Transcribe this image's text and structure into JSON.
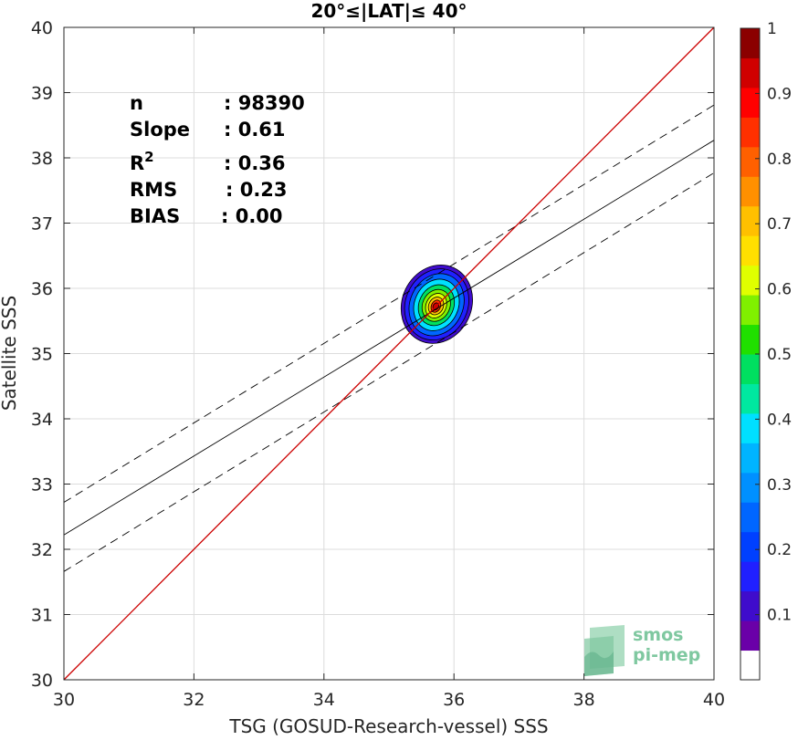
{
  "chart_data": {
    "type": "scatter",
    "title": "20°≤|LAT|≤ 40°",
    "xlabel": "TSG (GOSUD-Research-vessel) SSS",
    "ylabel": "Satellite SSS",
    "xlim": [
      30,
      40
    ],
    "ylim": [
      30,
      40
    ],
    "xticks": [
      "30",
      "32",
      "34",
      "36",
      "38",
      "40"
    ],
    "yticks": [
      "30",
      "31",
      "32",
      "33",
      "34",
      "35",
      "36",
      "37",
      "38",
      "39",
      "40"
    ],
    "grid": true,
    "stats": [
      {
        "label": "n",
        "sep": ": 98390"
      },
      {
        "label": "Slope",
        "sep": ": 0.61"
      },
      {
        "label": "R",
        "sup": "2",
        "sep": ": 0.36"
      },
      {
        "label": "RMS",
        "sep": ": 0.23"
      },
      {
        "label": "BIAS",
        "sep": ": 0.00"
      }
    ],
    "lines": {
      "identity": {
        "x": [
          30,
          40
        ],
        "y": [
          30,
          40
        ],
        "color": "#cc0000"
      },
      "fit": {
        "x": [
          30,
          40
        ],
        "y": [
          32.22,
          38.27
        ],
        "color": "#000000"
      },
      "fit_upper": {
        "x": [
          30,
          40
        ],
        "y": [
          32.72,
          38.81
        ],
        "style": "dashed"
      },
      "fit_lower": {
        "x": [
          30,
          40
        ],
        "y": [
          31.66,
          37.77
        ],
        "style": "dashed"
      }
    },
    "density": {
      "center": [
        35.75,
        35.72
      ],
      "description": "normalized point density contours",
      "levels": [
        0.05,
        0.1,
        0.2,
        0.3,
        0.4,
        0.5,
        0.6,
        0.7,
        0.8,
        0.9,
        0.95
      ]
    },
    "colorbar": {
      "ticks": [
        "0.1",
        "0.2",
        "0.3",
        "0.4",
        "0.5",
        "0.6",
        "0.7",
        "0.8",
        "0.9",
        "1"
      ],
      "tick_values": [
        0.1,
        0.2,
        0.3,
        0.4,
        0.5,
        0.6,
        0.7,
        0.8,
        0.9,
        1.0
      ],
      "range": [
        0,
        1
      ],
      "colors": [
        "#ffffff",
        "#6a00a8",
        "#3f0ccc",
        "#2020ff",
        "#0040ff",
        "#0066ff",
        "#0090ff",
        "#00b4ff",
        "#00e0ff",
        "#00e8a0",
        "#00e060",
        "#20e000",
        "#80f000",
        "#e0ff00",
        "#ffe000",
        "#ffc000",
        "#ff9000",
        "#ff6000",
        "#ff3000",
        "#ff0000",
        "#d00000",
        "#8b0000"
      ]
    }
  },
  "logo": {
    "line1": "smos",
    "line2": "pi-mep"
  }
}
